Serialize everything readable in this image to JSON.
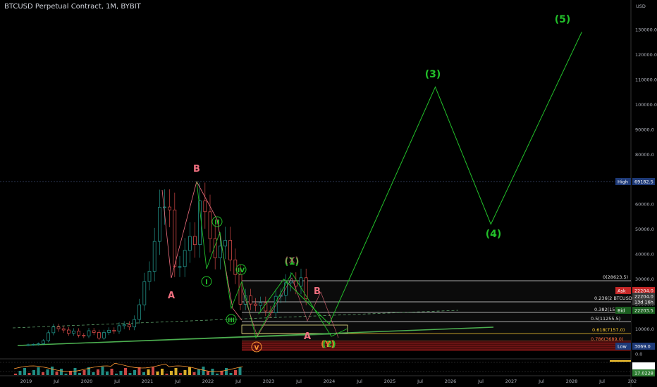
{
  "header": {
    "title": "BTCUSD Perpetual Contract, 1M, BYBIT"
  },
  "colors": {
    "background": "#000000",
    "up": "#26a69a",
    "down": "#ef5350",
    "wave_green": "#22c02a",
    "wave_pink": "#f07080",
    "fib_line": "#e0e0e0",
    "trend": "#5ea06a"
  },
  "chart_data": {
    "type": "line",
    "y_axis": {
      "unit_label": "USD",
      "ticks": [
        "130000.0",
        "120000.0",
        "110000.0",
        "100000.0",
        "90000.0",
        "80000.0",
        "70000.0",
        "60000.0",
        "50000.0",
        "40000.0",
        "30000.0",
        "20000.0",
        "10000.0",
        "0.0"
      ]
    },
    "x_axis": {
      "ticks": [
        "2019",
        "Jul",
        "2020",
        "Jul",
        "2021",
        "Jul",
        "2022",
        "Jul",
        "2023",
        "Jul",
        "2024",
        "Jul",
        "2025",
        "Jul",
        "2026",
        "Jul",
        "2027",
        "Jul",
        "2028",
        "Jul",
        "202"
      ]
    },
    "price_tags": [
      {
        "label": "High",
        "value": "69182.5",
        "color": "#1e3a78"
      },
      {
        "label": "Ask",
        "value": "22204.0",
        "color": "#c62828"
      },
      {
        "label": "",
        "value": "22204.0",
        "color": "#3a3a3a"
      },
      {
        "label": "",
        "value": "13d 16h",
        "color": "#3a3a3a"
      },
      {
        "label": "Bid",
        "value": "22203.5",
        "color": "#1b5e20"
      },
      {
        "label": "Low",
        "value": "3069.0",
        "color": "#1e3a78"
      },
      {
        "label": "",
        "value": "78.3928",
        "color": "#ffffff"
      },
      {
        "label": "",
        "value": "17.0228",
        "color": "#2e7d32"
      }
    ],
    "fib_levels": [
      {
        "label": "0(28623.5)",
        "color": "#e0e0e0"
      },
      {
        "label": "0.236(2 BTCUSD",
        "color": "#e0e0e0"
      },
      {
        "label": "0.382(1535·",
        "color": "#e0e0e0"
      },
      {
        "label": "0.5(11255.5)",
        "color": "#e0e0e0"
      },
      {
        "label": "0.618(7157.0)",
        "color": "#ffcc33"
      },
      {
        "label": "0.786(3689.0)",
        "color": "#ff6b3d"
      }
    ],
    "wave_labels": [
      "(5)",
      "(3)",
      "(4)",
      "B",
      "A",
      "B",
      "A",
      "II",
      "IV",
      "I",
      "III",
      "(1)",
      "(2)",
      "(Y)",
      "(X)",
      "V"
    ],
    "projection_path": [
      {
        "date": "2022-11",
        "price": 16000
      },
      {
        "date": "2023-04",
        "price": 30000
      },
      {
        "date": "2024-01",
        "price": 12000
      },
      {
        "date": "2025-10",
        "price": 107000
      },
      {
        "date": "2026-09",
        "price": 52000
      },
      {
        "date": "2028-03",
        "price": 129000
      }
    ]
  }
}
